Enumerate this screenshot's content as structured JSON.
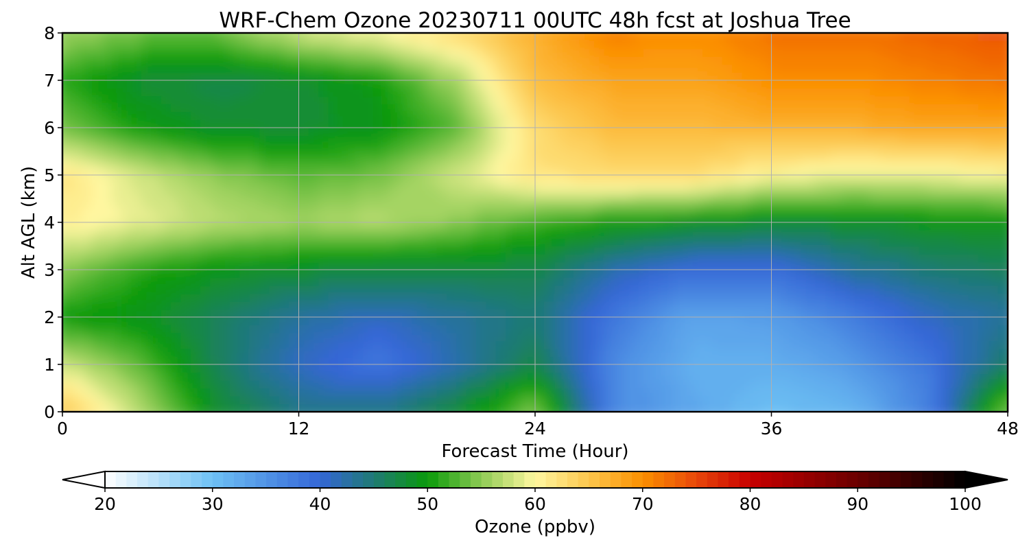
{
  "chart_data": {
    "type": "heatmap",
    "title": "WRF-Chem Ozone  20230711 00UTC 48h fcst at Joshua Tree",
    "xlabel": "Forecast Time (Hour)",
    "ylabel": "Alt AGL (km)",
    "xlim": [
      0,
      48
    ],
    "ylim": [
      0,
      8
    ],
    "x_ticks": [
      "0",
      "12",
      "24",
      "36",
      "48"
    ],
    "y_ticks": [
      "0",
      "1",
      "2",
      "3",
      "4",
      "5",
      "6",
      "7",
      "8"
    ],
    "grid": true,
    "x": [
      0,
      4,
      8,
      12,
      16,
      20,
      24,
      28,
      32,
      36,
      40,
      44,
      48
    ],
    "y": [
      0,
      1,
      2,
      3,
      4,
      5,
      6,
      7,
      8
    ],
    "z": [
      [
        65,
        57,
        48,
        44,
        44,
        48,
        55,
        36,
        33,
        30,
        31,
        37,
        55
      ],
      [
        58,
        53,
        46,
        41,
        38,
        42,
        47,
        36,
        32,
        32,
        34,
        38,
        46
      ],
      [
        50,
        49,
        46,
        43,
        41,
        43,
        45,
        38,
        33,
        34,
        37,
        41,
        43
      ],
      [
        55,
        51,
        49,
        48,
        47,
        47,
        47,
        42,
        39,
        39,
        43,
        45,
        46
      ],
      [
        61,
        59,
        57,
        56,
        57,
        55,
        52,
        50,
        49,
        48,
        48,
        49,
        49
      ],
      [
        62,
        58,
        55,
        53,
        54,
        58,
        62,
        63,
        63,
        60,
        59,
        59,
        60
      ],
      [
        54,
        50,
        48,
        48,
        49,
        53,
        63,
        66,
        66,
        67,
        67,
        68,
        68
      ],
      [
        51,
        48,
        47,
        48,
        50,
        56,
        66,
        68,
        68,
        70,
        70,
        71,
        72
      ],
      [
        56,
        54,
        54,
        58,
        60,
        63,
        67,
        71,
        70,
        72,
        72,
        73,
        74
      ]
    ],
    "colorbar": {
      "label": "Ozone  (ppbv)",
      "min": 20,
      "max": 100,
      "ticks": [
        "20",
        "30",
        "40",
        "50",
        "60",
        "70",
        "80",
        "90",
        "100"
      ],
      "extend": "both",
      "colors": [
        {
          "v": 20,
          "c": "#ffffff"
        },
        {
          "v": 30,
          "c": "#6ec1f4"
        },
        {
          "v": 40,
          "c": "#3466d6"
        },
        {
          "v": 45,
          "c": "#1f7a74"
        },
        {
          "v": 50,
          "c": "#0a9a0a"
        },
        {
          "v": 55,
          "c": "#8ecb54"
        },
        {
          "v": 60,
          "c": "#fff7a0"
        },
        {
          "v": 65,
          "c": "#fcc64d"
        },
        {
          "v": 70,
          "c": "#fb8f00"
        },
        {
          "v": 75,
          "c": "#e8470a"
        },
        {
          "v": 80,
          "c": "#c80000"
        },
        {
          "v": 90,
          "c": "#6a0000"
        },
        {
          "v": 100,
          "c": "#000000"
        }
      ]
    }
  }
}
